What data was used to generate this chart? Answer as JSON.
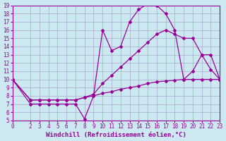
{
  "background_color": "#cce8f0",
  "grid_color": "#aaaacc",
  "line_color": "#990099",
  "xlim": [
    0,
    23
  ],
  "ylim": [
    5,
    19
  ],
  "xticks": [
    0,
    2,
    3,
    4,
    5,
    6,
    7,
    8,
    9,
    10,
    11,
    12,
    13,
    14,
    15,
    16,
    17,
    18,
    19,
    20,
    21,
    22,
    23
  ],
  "yticks": [
    5,
    6,
    7,
    8,
    9,
    10,
    11,
    12,
    13,
    14,
    15,
    16,
    17,
    18,
    19
  ],
  "xlabel": "Windchill (Refroidissement éolien,°C)",
  "curve1_x": [
    0,
    2,
    3,
    4,
    5,
    6,
    7,
    8,
    9,
    10,
    11,
    12,
    13,
    14,
    15,
    16,
    17,
    18,
    19,
    20,
    21,
    22,
    23
  ],
  "curve1_y": [
    10,
    7,
    7,
    7,
    7,
    7,
    7,
    5.2,
    8,
    16,
    13.5,
    14,
    17,
    18.5,
    19.2,
    19,
    18,
    16,
    10,
    11,
    13,
    13,
    10
  ],
  "curve2_x": [
    0,
    2,
    3,
    4,
    5,
    6,
    7,
    8,
    9,
    10,
    11,
    12,
    13,
    14,
    15,
    16,
    17,
    18,
    19,
    20,
    21,
    22,
    23
  ],
  "curve2_y": [
    10,
    7.5,
    7.5,
    7.5,
    7.5,
    7.5,
    7.5,
    7.8,
    8.2,
    9.5,
    10.5,
    11.5,
    12.5,
    13.5,
    14.5,
    15.5,
    16,
    15.5,
    15,
    15,
    13,
    11.2,
    10
  ],
  "curve3_x": [
    0,
    2,
    3,
    4,
    5,
    6,
    7,
    8,
    9,
    10,
    11,
    12,
    13,
    14,
    15,
    16,
    17,
    18,
    19,
    20,
    21,
    22,
    23
  ],
  "curve3_y": [
    10,
    7.5,
    7.5,
    7.5,
    7.5,
    7.5,
    7.5,
    7.8,
    8.0,
    8.3,
    8.5,
    8.8,
    9.0,
    9.2,
    9.5,
    9.7,
    9.8,
    9.9,
    10,
    10,
    10,
    10,
    10
  ],
  "marker": "D",
  "markersize": 2.0,
  "linewidth": 0.9,
  "xlabel_fontsize": 6.5,
  "tick_fontsize": 5.5
}
